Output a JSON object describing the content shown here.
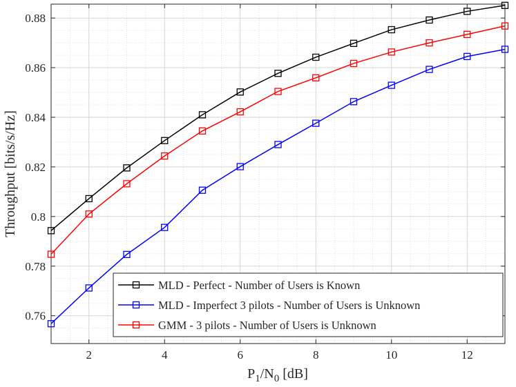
{
  "chart_data": {
    "type": "line",
    "title": "",
    "xlabel_main": "P",
    "xlabel_sub1": "1",
    "xlabel_mid": "/N",
    "xlabel_sub2": "0",
    "xlabel_tail": " [dB]",
    "ylabel": "Throughput [bits/s/Hz]",
    "xlim": [
      1,
      13
    ],
    "ylim": [
      0.7488,
      0.8856
    ],
    "x": [
      1,
      2,
      3,
      4,
      5,
      6,
      7,
      8,
      9,
      10,
      11,
      12,
      13
    ],
    "x_ticks": [
      2,
      4,
      6,
      8,
      10,
      12
    ],
    "x_tick_labels": [
      "2",
      "4",
      "6",
      "8",
      "10",
      "12"
    ],
    "y_ticks": [
      0.76,
      0.78,
      0.8,
      0.82,
      0.84,
      0.86,
      0.88
    ],
    "y_tick_labels": [
      "0.76",
      "0.78",
      "0.8",
      "0.82",
      "0.84",
      "0.86",
      "0.88"
    ],
    "grid": true,
    "legend_position": "bottom-right",
    "series": [
      {
        "name": "MLD - Perfect - Number of Users is Known",
        "color": "#000000",
        "marker": "square",
        "values": [
          0.7943,
          0.8072,
          0.8196,
          0.8306,
          0.841,
          0.8502,
          0.8577,
          0.8642,
          0.8698,
          0.8753,
          0.8792,
          0.8827,
          0.8851
        ]
      },
      {
        "name": "MLD - Imperfect 3 pilots - Number of Users is Unknown",
        "color": "#0000ff",
        "marker": "square",
        "values": [
          0.7568,
          0.7712,
          0.7847,
          0.7956,
          0.8106,
          0.8201,
          0.829,
          0.8376,
          0.8463,
          0.8529,
          0.8593,
          0.8645,
          0.8674
        ]
      },
      {
        "name": "GMM - 3 pilots - Number of Users is Unknown",
        "color": "#ff0000",
        "marker": "square",
        "values": [
          0.7848,
          0.801,
          0.8132,
          0.8244,
          0.8345,
          0.8422,
          0.8504,
          0.8559,
          0.8617,
          0.8663,
          0.87,
          0.8734,
          0.8768
        ]
      }
    ]
  }
}
